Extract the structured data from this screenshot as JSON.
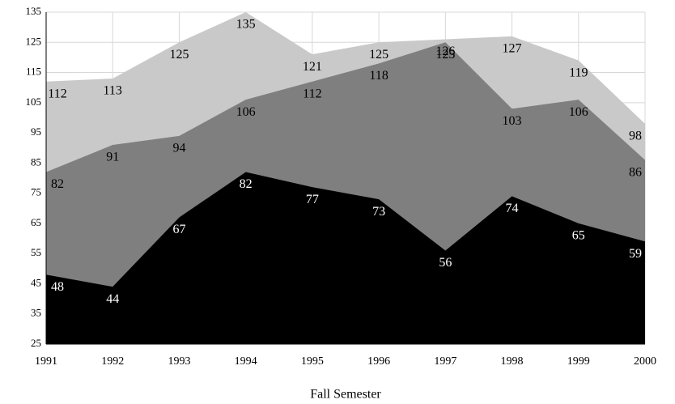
{
  "chart_data": {
    "type": "area",
    "x_label": "Fall Semester",
    "x": [
      1991,
      1992,
      1993,
      1994,
      1995,
      1996,
      1997,
      1998,
      1999,
      2000
    ],
    "xlim": [
      1991,
      2000
    ],
    "xticks": [
      1991,
      1992,
      1993,
      1994,
      1995,
      1996,
      1997,
      1998,
      1999,
      2000
    ],
    "ylim": [
      25,
      135
    ],
    "yticks": [
      25,
      35,
      45,
      55,
      65,
      75,
      85,
      95,
      105,
      115,
      125,
      135
    ],
    "grid": true,
    "series": [
      {
        "color": "#c9c9c9",
        "label_color": "#000000",
        "values": [
          112,
          113,
          125,
          135,
          121,
          125,
          126,
          127,
          119,
          98
        ]
      },
      {
        "color": "#7f7f7f",
        "label_color": "#000000",
        "values": [
          82,
          91,
          94,
          106,
          112,
          118,
          125,
          103,
          106,
          86
        ]
      },
      {
        "color": "#000000",
        "label_color": "#ffffff",
        "values": [
          48,
          44,
          67,
          82,
          77,
          73,
          56,
          74,
          65,
          59
        ]
      }
    ]
  }
}
